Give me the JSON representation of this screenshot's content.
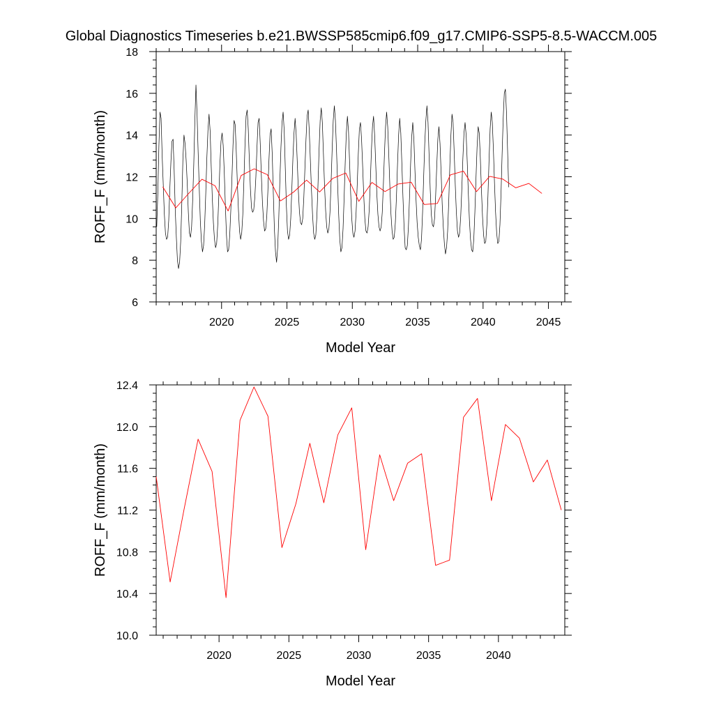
{
  "title": "Global Diagnostics Timeseries b.e21.BWSSP585cmip6.f09_g17.CMIP6-SSP5-8.5-WACCM.005",
  "colors": {
    "monthly": "#000000",
    "annual": "#ff0000",
    "background": "#ffffff"
  },
  "chart_data": [
    {
      "type": "line",
      "xlabel": "Model Year",
      "ylabel": "ROFF_F (mm/month)",
      "xlim": [
        2015,
        2046.25
      ],
      "ylim": [
        6,
        18
      ],
      "xticks": [
        2020,
        2025,
        2030,
        2035,
        2040,
        2045
      ],
      "xtick_labels": [
        "2020",
        "2025",
        "2030",
        "2035",
        "2040",
        "2045"
      ],
      "yticks": [
        6,
        8,
        10,
        12,
        14,
        16,
        18
      ],
      "ytick_labels": [
        "6",
        "8",
        "10",
        "12",
        "14",
        "16",
        "18"
      ],
      "grid": false,
      "series": [
        {
          "color": "#000000",
          "x_start": 2015.0417,
          "x_step": 0.08333,
          "values": [
            9.6,
            11.2,
            13.5,
            15.1,
            14.8,
            13.0,
            11.6,
            10.2,
            9.3,
            9.0,
            9.1,
            9.9,
            11.4,
            12.7,
            13.7,
            13.8,
            12.3,
            10.4,
            9.1,
            8.0,
            7.6,
            7.9,
            8.9,
            10.7,
            12.8,
            14.0,
            13.6,
            12.8,
            11.7,
            10.3,
            9.3,
            9.1,
            9.6,
            10.9,
            12.6,
            14.7,
            16.4,
            15.0,
            13.2,
            11.5,
            9.9,
            8.9,
            8.4,
            8.7,
            9.7,
            11.2,
            12.9,
            14.2,
            15.0,
            14.2,
            12.5,
            11.0,
            9.8,
            9.0,
            8.6,
            8.8,
            9.7,
            11.1,
            12.6,
            13.7,
            14.1,
            13.5,
            12.2,
            10.6,
            9.2,
            8.4,
            8.5,
            9.2,
            10.4,
            11.9,
            13.5,
            14.7,
            14.5,
            13.2,
            11.7,
            10.4,
            9.4,
            9.0,
            9.3,
            10.2,
            11.8,
            13.5,
            14.9,
            15.2,
            14.3,
            12.8,
            11.4,
            10.5,
            10.3,
            10.4,
            11.0,
            12.0,
            13.4,
            14.6,
            14.8,
            13.6,
            12.1,
            10.8,
            9.9,
            9.4,
            9.5,
            10.1,
            11.3,
            12.8,
            14.0,
            14.3,
            13.1,
            11.2,
            9.5,
            8.4,
            7.9,
            8.6,
            10.0,
            11.8,
            13.4,
            14.6,
            15.1,
            14.2,
            12.4,
            10.6,
            9.4,
            9.0,
            9.2,
            10.0,
            11.4,
            12.9,
            14.1,
            14.8,
            14.0,
            12.7,
            11.3,
            10.3,
            9.8,
            9.7,
            10.0,
            11.0,
            12.4,
            13.8,
            14.9,
            15.2,
            14.2,
            12.8,
            11.4,
            10.2,
            9.3,
            9.0,
            9.2,
            10.1,
            11.6,
            13.3,
            14.7,
            15.3,
            14.6,
            13.1,
            11.6,
            10.4,
            9.6,
            9.3,
            9.5,
            10.3,
            11.7,
            13.3,
            14.7,
            15.4,
            14.7,
            13.3,
            11.7,
            10.2,
            9.0,
            8.4,
            8.6,
            9.5,
            11.0,
            12.7,
            14.1,
            14.9,
            14.2,
            12.7,
            11.2,
            10.0,
            9.3,
            9.1,
            9.4,
            10.3,
            11.6,
            13.1,
            14.3,
            14.6,
            13.8,
            12.5,
            11.1,
            10.0,
            9.4,
            9.3,
            9.6,
            10.4,
            11.7,
            13.2,
            14.4,
            14.9,
            14.0,
            12.6,
            11.2,
            10.2,
            9.6,
            9.4,
            9.6,
            10.3,
            11.6,
            13.1,
            14.4,
            15.1,
            14.4,
            13.0,
            11.5,
            10.2,
            9.4,
            9.0,
            9.1,
            9.8,
            11.0,
            12.6,
            14.0,
            14.8,
            14.1,
            12.6,
            11.0,
            9.6,
            8.6,
            8.5,
            8.7,
            9.6,
            11.0,
            12.6,
            13.9,
            14.6,
            13.8,
            12.3,
            10.9,
            9.8,
            9.1,
            8.7,
            8.5,
            9.0,
            10.3,
            12.0,
            13.6,
            14.7,
            15.4,
            14.6,
            13.0,
            11.4,
            10.2,
            9.7,
            9.6,
            10.0,
            11.1,
            12.5,
            13.8,
            14.4,
            13.6,
            12.2,
            10.7,
            9.6,
            8.8,
            8.3,
            8.6,
            9.4,
            10.8,
            12.5,
            14.0,
            15.0,
            14.6,
            13.2,
            11.6,
            10.3,
            9.4,
            9.1,
            9.3,
            10.1,
            11.4,
            12.9,
            14.1,
            14.6,
            14.0,
            12.7,
            11.2,
            9.9,
            9.0,
            8.5,
            8.4,
            9.0,
            10.3,
            11.9,
            13.4,
            14.4,
            14.1,
            12.9,
            11.4,
            10.1,
            9.2,
            8.8,
            8.9,
            9.7,
            11.1,
            12.8,
            14.3,
            15.1,
            14.6,
            13.3,
            11.7,
            10.3,
            9.3,
            8.8,
            8.9,
            9.7,
            11.2,
            13.1,
            14.8,
            16.0,
            16.2,
            15.1,
            13.3,
            11.5
          ]
        },
        {
          "color": "#ff0000",
          "x": [
            2015.5,
            2016.5,
            2017.5,
            2018.5,
            2019.5,
            2020.5,
            2021.5,
            2022.5,
            2023.5,
            2024.5,
            2025.5,
            2026.5,
            2027.5,
            2028.5,
            2029.5,
            2030.5,
            2031.5,
            2032.5,
            2033.5,
            2034.5,
            2035.5,
            2036.5,
            2037.5,
            2038.5,
            2039.5,
            2040.5,
            2041.5,
            2042.5,
            2043.5,
            2044.5
          ],
          "values": [
            11.52,
            10.51,
            11.21,
            11.88,
            11.57,
            10.36,
            12.06,
            12.38,
            12.1,
            10.84,
            11.26,
            11.84,
            11.27,
            11.92,
            12.18,
            10.82,
            11.73,
            11.29,
            11.65,
            11.74,
            10.67,
            10.72,
            12.09,
            12.27,
            11.29,
            12.02,
            11.89,
            11.47,
            11.68,
            11.2
          ]
        }
      ]
    },
    {
      "type": "line",
      "xlabel": "Model Year",
      "ylabel": "ROFF_F (mm/month)",
      "xlim": [
        2015.5,
        2044.75
      ],
      "ylim": [
        10.0,
        12.4
      ],
      "xticks": [
        2020,
        2025,
        2030,
        2035,
        2040
      ],
      "xtick_labels": [
        "2020",
        "2025",
        "2030",
        "2035",
        "2040"
      ],
      "yticks": [
        10.0,
        10.4,
        10.8,
        11.2,
        11.6,
        12.0,
        12.4
      ],
      "ytick_labels": [
        "10.0",
        "10.4",
        "10.8",
        "11.2",
        "11.6",
        "12.0",
        "12.4"
      ],
      "grid": false,
      "series": [
        {
          "color": "#ff0000",
          "x": [
            2015.5,
            2016.5,
            2017.5,
            2018.5,
            2019.5,
            2020.5,
            2021.5,
            2022.5,
            2023.5,
            2024.5,
            2025.5,
            2026.5,
            2027.5,
            2028.5,
            2029.5,
            2030.5,
            2031.5,
            2032.5,
            2033.5,
            2034.5,
            2035.5,
            2036.5,
            2037.5,
            2038.5,
            2039.5,
            2040.5,
            2041.5,
            2042.5,
            2043.5,
            2044.5
          ],
          "values": [
            11.52,
            10.51,
            11.21,
            11.88,
            11.57,
            10.36,
            12.06,
            12.38,
            12.1,
            10.84,
            11.26,
            11.84,
            11.27,
            11.92,
            12.18,
            10.82,
            11.73,
            11.29,
            11.65,
            11.74,
            10.67,
            10.72,
            12.09,
            12.27,
            11.29,
            12.02,
            11.89,
            11.47,
            11.68,
            11.2
          ]
        }
      ]
    }
  ]
}
